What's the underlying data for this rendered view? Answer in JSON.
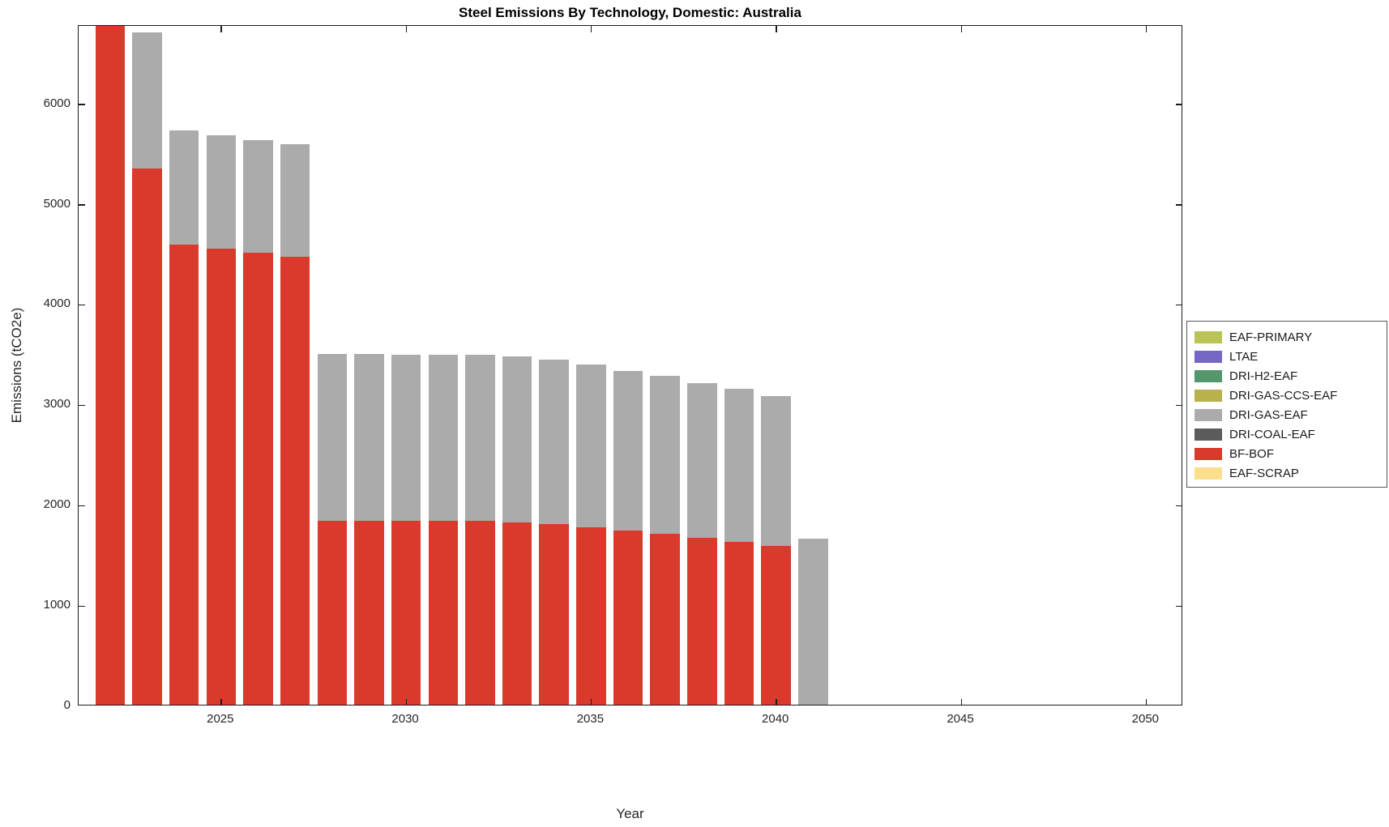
{
  "chart_data": {
    "type": "bar",
    "stacked": true,
    "title": "Steel Emissions By Technology, Domestic: Australia",
    "xlabel": "Year",
    "ylabel": "Emissions (tCO2e)",
    "xlim": [
      2021.15,
      2051.0
    ],
    "ylim": [
      0,
      6780
    ],
    "xticks": [
      2025,
      2030,
      2035,
      2040,
      2045,
      2050
    ],
    "yticks": [
      0,
      1000,
      2000,
      3000,
      4000,
      5000,
      6000
    ],
    "grid": false,
    "legend_position": "right-outside",
    "bar_width_years": 0.8,
    "years": [
      2022,
      2023,
      2024,
      2025,
      2026,
      2027,
      2028,
      2029,
      2030,
      2031,
      2032,
      2033,
      2034,
      2035,
      2036,
      2037,
      2038,
      2039,
      2040,
      2041
    ],
    "series": [
      {
        "name": "BF-BOF",
        "color": "#d93a2b",
        "values": [
          6850,
          5360,
          4600,
          4560,
          4520,
          4480,
          1850,
          1850,
          1845,
          1845,
          1845,
          1835,
          1815,
          1785,
          1750,
          1720,
          1680,
          1640,
          1600,
          0
        ]
      },
      {
        "name": "DRI-GAS-EAF",
        "color": "#ababab",
        "values": [
          0,
          1355,
          1140,
          1130,
          1125,
          1120,
          1660,
          1660,
          1660,
          1660,
          1660,
          1655,
          1640,
          1620,
          1595,
          1570,
          1540,
          1520,
          1495,
          1670
        ]
      }
    ],
    "legend": [
      {
        "label": "EAF-PRIMARY",
        "color": "#b9c356"
      },
      {
        "label": "LTAE",
        "color": "#7468c4"
      },
      {
        "label": "DRI-H2-EAF",
        "color": "#55976b"
      },
      {
        "label": "DRI-GAS-CCS-EAF",
        "color": "#bab04c"
      },
      {
        "label": "DRI-GAS-EAF",
        "color": "#ababab"
      },
      {
        "label": "DRI-COAL-EAF",
        "color": "#5b5b5b"
      },
      {
        "label": "BF-BOF",
        "color": "#d93a2b"
      },
      {
        "label": "EAF-SCRAP",
        "color": "#fbdf8d"
      }
    ]
  }
}
